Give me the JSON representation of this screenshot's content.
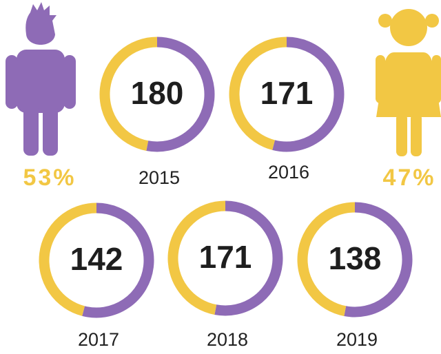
{
  "legend": [
    {
      "label": "53%",
      "value": 53,
      "color": "#8e6bb6"
    },
    {
      "label": "47%",
      "value": 47,
      "color": "#f2c744"
    }
  ],
  "chart_data": [
    {
      "type": "donut",
      "center_label": "180",
      "caption": "2015",
      "values": [
        53,
        47
      ],
      "colors": [
        "#8e6bb6",
        "#f2c744"
      ]
    },
    {
      "type": "donut",
      "center_label": "171",
      "caption": "2016",
      "values": [
        54,
        46
      ],
      "colors": [
        "#8e6bb6",
        "#f2c744"
      ]
    },
    {
      "type": "donut",
      "center_label": "142",
      "caption": "2017",
      "values": [
        54,
        46
      ],
      "colors": [
        "#8e6bb6",
        "#f2c744"
      ]
    },
    {
      "type": "donut",
      "center_label": "171",
      "caption": "2018",
      "values": [
        53,
        47
      ],
      "colors": [
        "#8e6bb6",
        "#f2c744"
      ]
    },
    {
      "type": "donut",
      "center_label": "138",
      "caption": "2019",
      "values": [
        53,
        47
      ],
      "colors": [
        "#8e6bb6",
        "#f2c744"
      ]
    }
  ]
}
